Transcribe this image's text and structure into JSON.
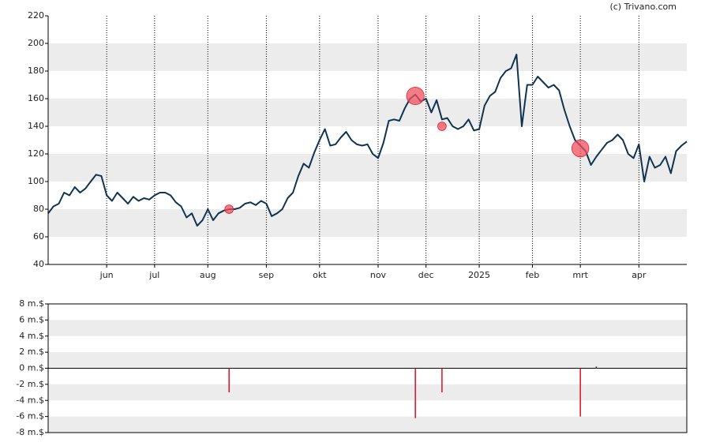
{
  "chart_data": [
    {
      "type": "line",
      "source": "(c) Trivano.com",
      "categories": [
        null,
        null,
        null,
        null,
        null,
        null,
        null,
        null,
        null,
        null,
        null,
        "jun",
        null,
        null,
        null,
        null,
        null,
        null,
        null,
        null,
        "jul",
        null,
        null,
        null,
        null,
        null,
        null,
        null,
        null,
        null,
        "aug",
        null,
        null,
        null,
        null,
        null,
        null,
        null,
        null,
        null,
        null,
        "sep",
        null,
        null,
        null,
        null,
        null,
        null,
        null,
        null,
        null,
        "okt",
        null,
        null,
        null,
        null,
        null,
        null,
        null,
        null,
        null,
        null,
        "nov",
        null,
        null,
        null,
        null,
        null,
        null,
        null,
        null,
        "dec",
        null,
        null,
        null,
        null,
        null,
        null,
        null,
        null,
        null,
        "2025",
        null,
        null,
        null,
        null,
        null,
        null,
        null,
        null,
        null,
        "feb",
        null,
        null,
        null,
        null,
        null,
        null,
        null,
        null,
        "mrt",
        null,
        null,
        null,
        null,
        null,
        null,
        null,
        null,
        null,
        null,
        "apr",
        null,
        null,
        null,
        null,
        null,
        null,
        null,
        null,
        null
      ],
      "values": [
        77,
        82,
        84,
        92,
        90,
        96,
        92,
        95,
        100,
        105,
        104,
        90,
        86,
        92,
        88,
        84,
        89,
        86,
        88,
        87,
        90,
        92,
        92,
        90,
        85,
        82,
        74,
        77,
        68,
        72,
        80,
        72,
        77,
        79,
        80,
        80,
        81,
        84,
        85,
        83,
        86,
        84,
        75,
        77,
        80,
        88,
        92,
        104,
        113,
        110,
        121,
        130,
        138,
        126,
        127,
        132,
        136,
        130,
        127,
        126,
        127,
        120,
        117,
        128,
        144,
        145,
        144,
        153,
        160,
        163,
        158,
        160,
        150,
        159,
        145,
        146,
        140,
        138,
        140,
        145,
        137,
        138,
        155,
        162,
        165,
        175,
        180,
        182,
        192,
        140,
        170,
        170,
        176,
        172,
        168,
        170,
        166,
        152,
        140,
        130,
        126,
        122,
        112,
        118,
        123,
        128,
        130,
        134,
        130,
        120,
        117,
        127,
        100,
        118,
        110,
        112,
        118,
        106,
        122,
        126,
        129
      ],
      "color": "#0f3350",
      "trades": {
        "color": "#f0505f",
        "values": [
          null,
          null,
          null,
          null,
          null,
          null,
          null,
          null,
          null,
          null,
          null,
          null,
          null,
          null,
          null,
          null,
          null,
          null,
          null,
          null,
          null,
          null,
          null,
          null,
          null,
          null,
          null,
          null,
          null,
          null,
          null,
          null,
          null,
          null,
          80,
          null,
          null,
          null,
          null,
          null,
          null,
          null,
          null,
          null,
          null,
          null,
          null,
          null,
          null,
          null,
          null,
          null,
          null,
          null,
          null,
          null,
          null,
          null,
          null,
          null,
          null,
          null,
          null,
          null,
          null,
          null,
          null,
          null,
          null,
          162,
          null,
          null,
          null,
          null,
          140,
          null,
          null,
          null,
          null,
          null,
          null,
          null,
          null,
          null,
          null,
          null,
          null,
          null,
          null,
          null,
          null,
          null,
          null,
          null,
          null,
          null,
          null,
          null,
          null,
          null,
          124,
          null,
          null,
          null,
          null,
          null,
          null,
          null,
          null,
          null,
          null,
          null,
          null,
          null,
          null,
          null,
          null,
          null,
          null,
          null,
          null
        ]
      },
      "ylim": [
        40,
        220
      ],
      "yticks": [
        40,
        60,
        80,
        100,
        120,
        140,
        160,
        180,
        200,
        220
      ],
      "grid": "banded"
    },
    {
      "type": "bar",
      "color": "#e8192c",
      "values": [
        null,
        null,
        null,
        null,
        null,
        null,
        null,
        null,
        null,
        null,
        null,
        null,
        null,
        null,
        null,
        null,
        null,
        null,
        null,
        null,
        null,
        null,
        null,
        null,
        null,
        null,
        null,
        null,
        null,
        null,
        null,
        null,
        null,
        null,
        -3,
        null,
        null,
        null,
        null,
        null,
        null,
        null,
        null,
        null,
        null,
        null,
        null,
        null,
        null,
        null,
        null,
        null,
        null,
        null,
        null,
        null,
        null,
        null,
        null,
        null,
        null,
        null,
        null,
        null,
        null,
        null,
        null,
        null,
        null,
        -6.2,
        null,
        null,
        null,
        null,
        -3,
        null,
        null,
        null,
        null,
        null,
        null,
        null,
        null,
        null,
        null,
        null,
        null,
        null,
        null,
        null,
        null,
        null,
        null,
        null,
        null,
        null,
        null,
        null,
        null,
        null,
        -6,
        null,
        null,
        0.2,
        null,
        null,
        null,
        null,
        null,
        null,
        null,
        null,
        null,
        null,
        null,
        null,
        null,
        null,
        null,
        null,
        null
      ],
      "ylim": [
        -8,
        8
      ],
      "yticks": [
        {
          "value": -8,
          "label": "-8 m.$"
        },
        {
          "value": -6,
          "label": "-6 m.$"
        },
        {
          "value": -4,
          "label": "-4 m.$"
        },
        {
          "value": -2,
          "label": "-2 m.$"
        },
        {
          "value": 0,
          "label": "0 m.$"
        },
        {
          "value": 2,
          "label": "2 m.$"
        },
        {
          "value": 4,
          "label": "4 m.$"
        },
        {
          "value": 6,
          "label": "6 m.$"
        },
        {
          "value": 8,
          "label": "8 m.$"
        }
      ],
      "grid": "banded"
    }
  ]
}
